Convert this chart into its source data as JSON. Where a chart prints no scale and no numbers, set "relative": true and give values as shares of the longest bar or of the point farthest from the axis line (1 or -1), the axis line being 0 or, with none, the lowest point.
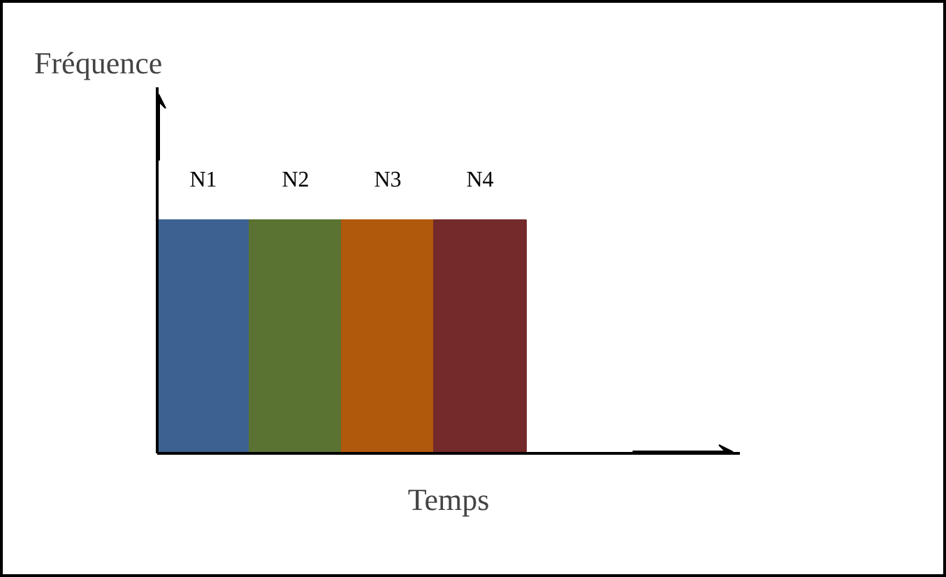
{
  "chart_data": {
    "type": "bar",
    "relative": true,
    "xlabel": "Temps",
    "ylabel": "Fréquence",
    "categories": [
      "N1",
      "N2",
      "N3",
      "N4"
    ],
    "values": [
      1,
      1,
      1,
      1
    ],
    "colors": [
      "#3d6191",
      "#5a7332",
      "#b0580c",
      "#742a2a"
    ]
  }
}
